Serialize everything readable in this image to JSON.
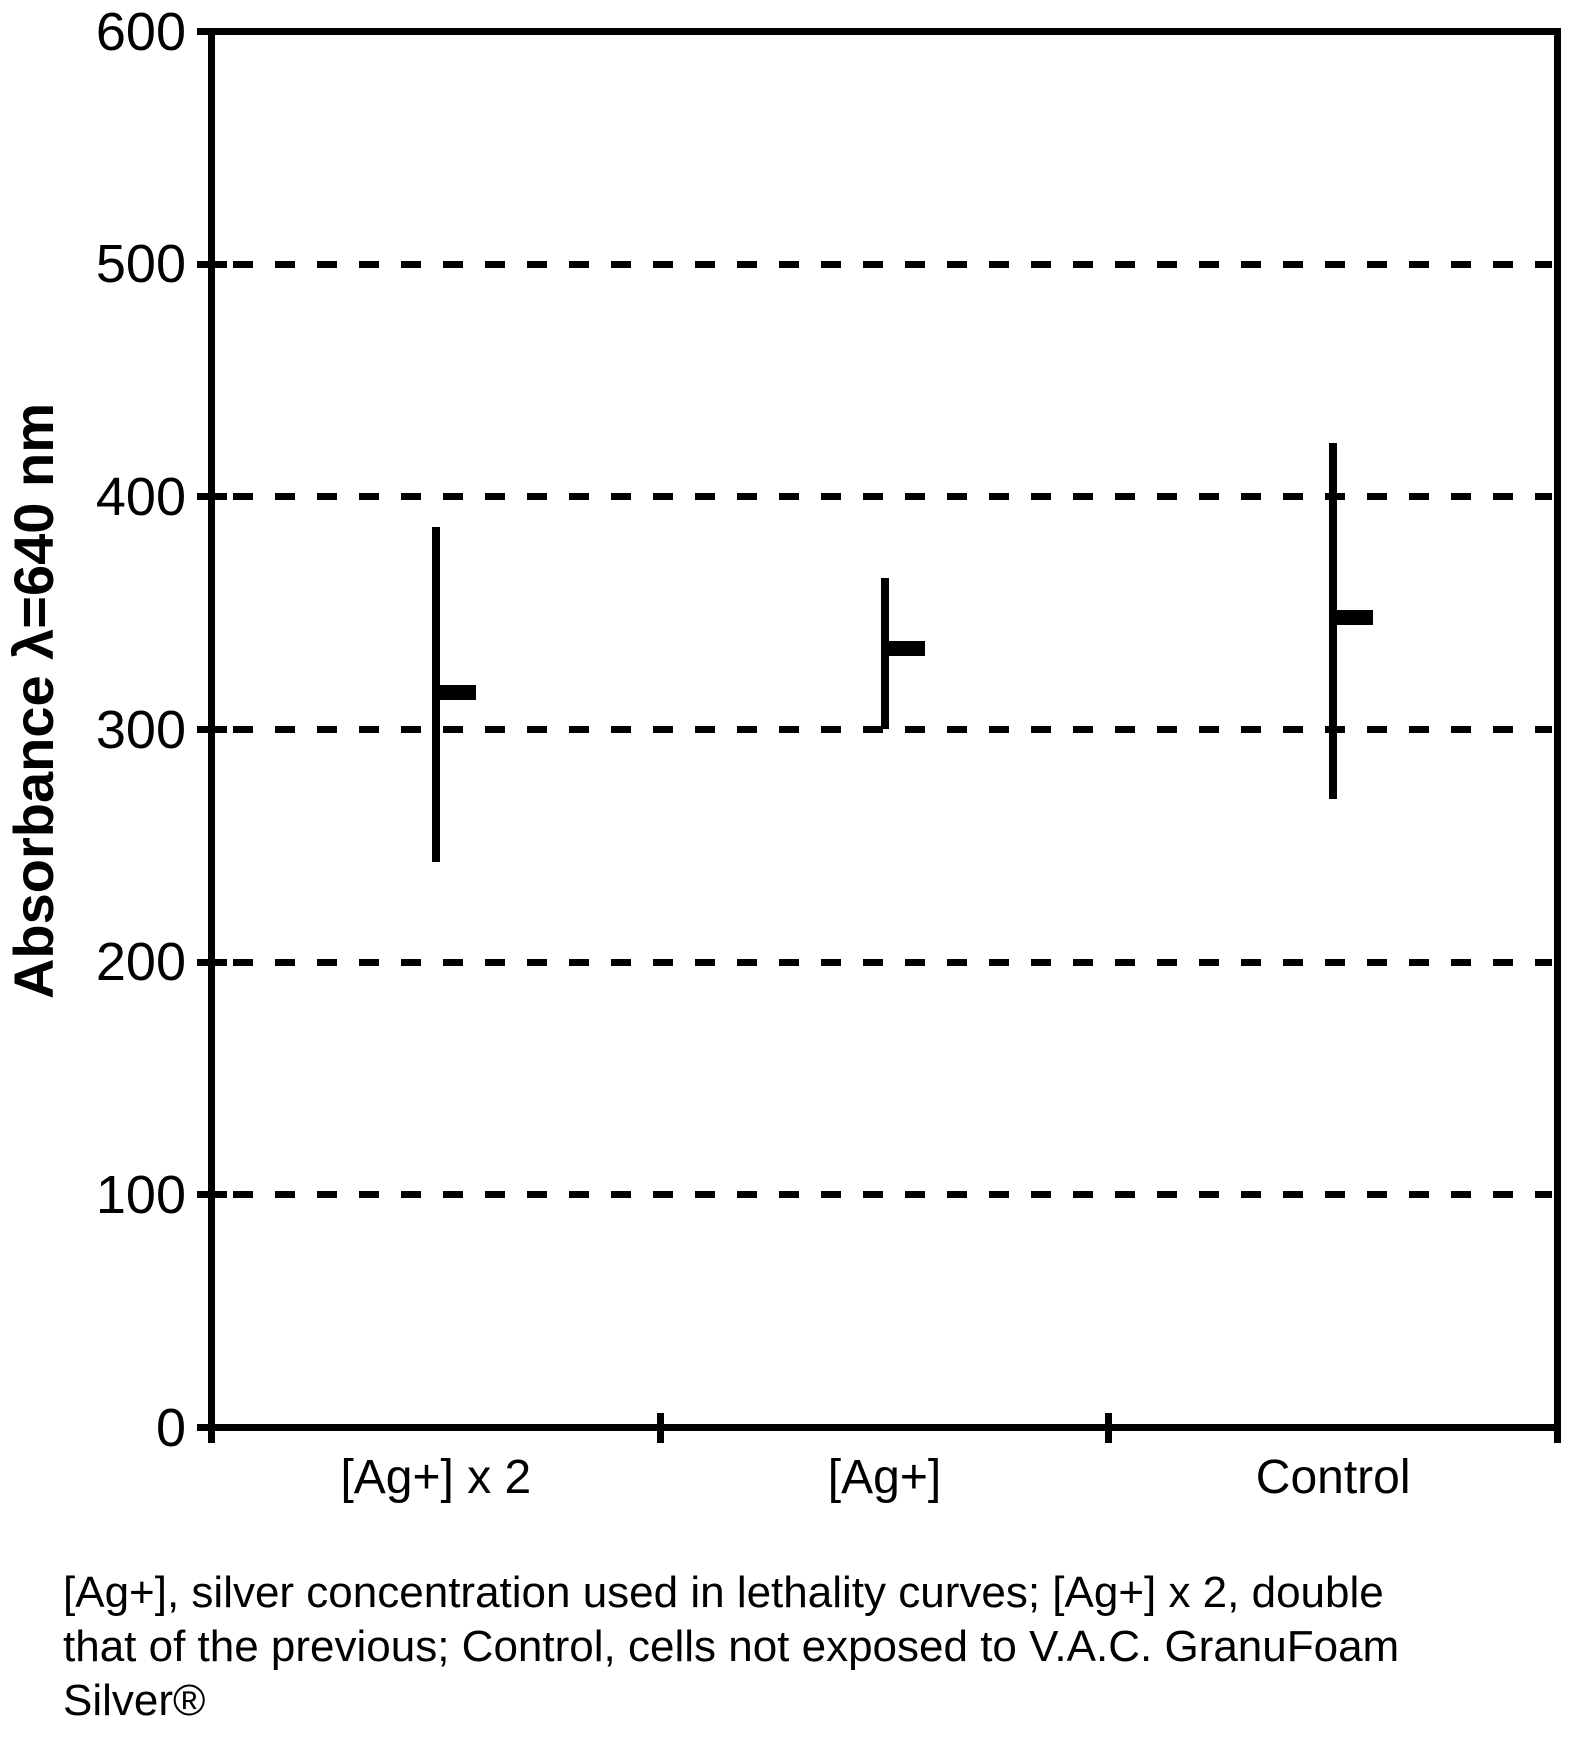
{
  "figure": {
    "background_color": "#ffffff",
    "ink_color": "#000000"
  },
  "chart_data": {
    "type": "scatter",
    "subtype": "mean-with-error-bars",
    "title": "",
    "xlabel": "",
    "ylabel": "Absorbance λ=640 nm",
    "categories": [
      "[Ag+] x 2",
      "[Ag+]",
      "Control"
    ],
    "series": [
      {
        "name": "mean",
        "values": [
          316,
          335,
          348
        ]
      },
      {
        "name": "error_high",
        "values": [
          387,
          365,
          423
        ]
      },
      {
        "name": "error_low",
        "values": [
          243,
          300,
          270
        ]
      }
    ],
    "ylim": [
      0,
      600
    ],
    "yticks": [
      0,
      100,
      200,
      300,
      400,
      500,
      600
    ],
    "grid": "horizontal dashed lines at 100, 200, 300, 400, 500",
    "legend_position": "none"
  },
  "caption": {
    "line1": "[Ag+], silver concentration used in lethality curves; [Ag+] x 2, double",
    "line2": "that of the previous; Control, cells not exposed to V.A.C. GranuFoam",
    "line3": "Silver®"
  }
}
